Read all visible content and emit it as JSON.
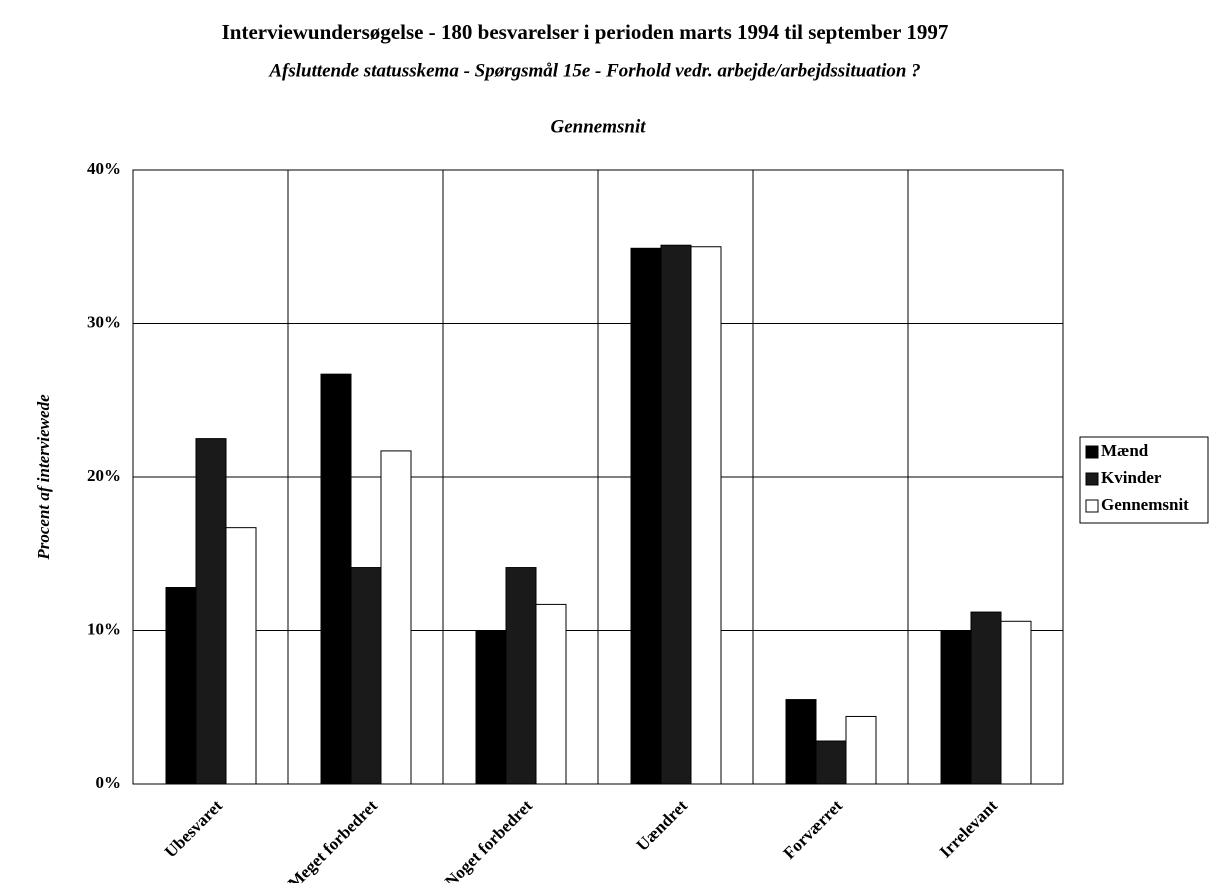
{
  "chart_data": {
    "type": "bar",
    "title": "Interviewundersøgelse - 180 besvarelser i perioden marts 1994 til september 1997",
    "subtitle": "Afsluttende statusskema - Spørgsmål 15e - Forhold vedr. arbejde/arbejdssituation ?",
    "chart_title": "Gennemsnit",
    "y_label": "Procent af interviewede",
    "categories": [
      "Ubesvaret",
      "Meget forbedret",
      "Noget forbedret",
      "Uændret",
      "Forværret",
      "Irrelevant"
    ],
    "series": [
      {
        "name": "Mænd",
        "color": "#000000",
        "values": [
          12.8,
          26.7,
          10.0,
          34.9,
          5.5,
          10.0
        ]
      },
      {
        "name": "Kvinder",
        "color": "#1a1a1a",
        "values": [
          22.5,
          14.1,
          14.1,
          35.1,
          2.8,
          11.2
        ]
      },
      {
        "name": "Gennemsnit",
        "color": "#ffffff",
        "values": [
          16.7,
          21.7,
          11.7,
          35.0,
          4.4,
          10.6
        ]
      }
    ],
    "ylim": [
      0,
      40
    ],
    "yticks": [
      {
        "value": 0,
        "label": "0%"
      },
      {
        "value": 10,
        "label": "10%"
      },
      {
        "value": 20,
        "label": "20%"
      },
      {
        "value": 30,
        "label": "30%"
      },
      {
        "value": 40,
        "label": "40%"
      }
    ],
    "grid": true,
    "legend": "right"
  }
}
